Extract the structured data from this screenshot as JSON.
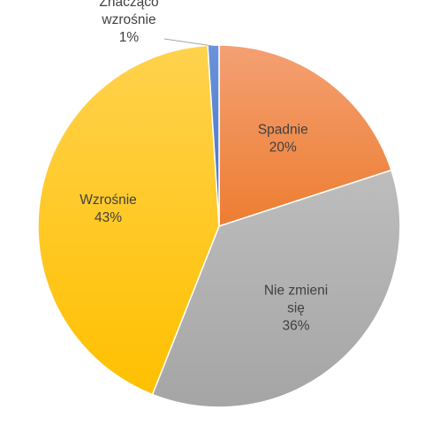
{
  "chart_data": {
    "type": "pie",
    "title": "",
    "slices": [
      {
        "label": "Spadnie",
        "label_lines": [
          "Spadnie"
        ],
        "value": 20,
        "value_label": "20%",
        "color": "#ED7D31",
        "color_light": "#F4A073"
      },
      {
        "label": "Nie zmieni się",
        "label_lines": [
          "Nie zmieni",
          "się"
        ],
        "value": 36,
        "value_label": "36%",
        "color": "#A5A5A5",
        "color_light": "#BDBDBD"
      },
      {
        "label": "Wzrośnie",
        "label_lines": [
          "Wzrośnie"
        ],
        "value": 43,
        "value_label": "43%",
        "color": "#FFC000",
        "color_light": "#FFD24D"
      },
      {
        "label": "Znacząco wzrośnie",
        "label_lines": [
          "Znacząco",
          "wzrośnie"
        ],
        "value": 1,
        "value_label": "1%",
        "color": "#4472C4",
        "color_light": "#6A93DA"
      }
    ],
    "start_angle_deg": 0,
    "direction": "clockwise",
    "legend": "none",
    "data_labels": "category-and-percent"
  }
}
